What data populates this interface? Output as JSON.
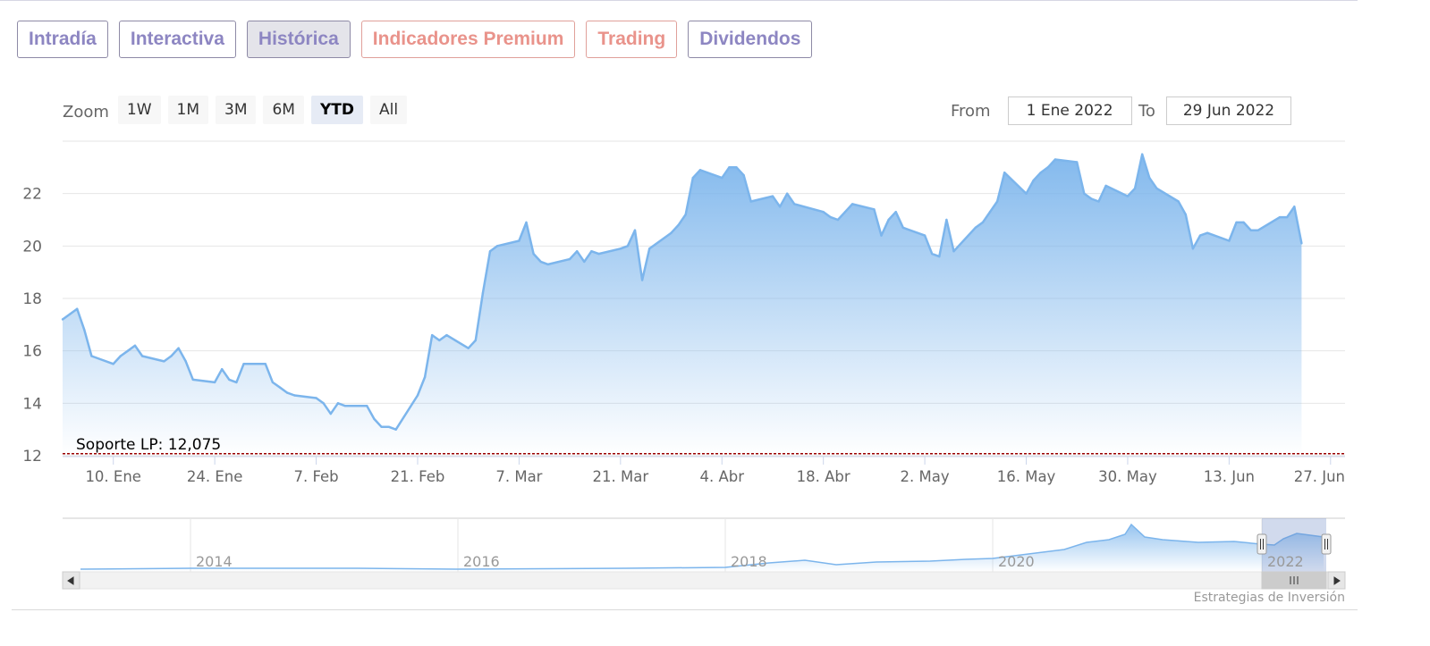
{
  "tabs": [
    {
      "label": "Intradía",
      "active": false,
      "style": "default"
    },
    {
      "label": "Interactiva",
      "active": false,
      "style": "default"
    },
    {
      "label": "Histórica",
      "active": true,
      "style": "default"
    },
    {
      "label": "Indicadores Premium",
      "active": false,
      "style": "premium"
    },
    {
      "label": "Trading",
      "active": false,
      "style": "premium"
    },
    {
      "label": "Dividendos",
      "active": false,
      "style": "default"
    }
  ],
  "zoom": {
    "label": "Zoom",
    "buttons": [
      "1W",
      "1M",
      "3M",
      "6M",
      "YTD",
      "All"
    ],
    "selected": "YTD"
  },
  "range": {
    "from_label": "From",
    "from_value": "1 Ene 2022",
    "to_label": "To",
    "to_value": "29 Jun 2022"
  },
  "credit": "Estrategias de Inversión",
  "colors": {
    "series_line": "#7cb5ec",
    "support_line": "#990000",
    "tab_text": "#8d86c2",
    "tab_premium_text": "#e9938b"
  },
  "chart_data": {
    "type": "area",
    "x_range": [
      "2022-01-03",
      "2022-06-29"
    ],
    "ylim": [
      12,
      24
    ],
    "yticks": [
      12,
      14,
      16,
      18,
      20,
      22
    ],
    "xtick_labels": [
      {
        "date": "2022-01-10",
        "label": "10. Ene"
      },
      {
        "date": "2022-01-24",
        "label": "24. Ene"
      },
      {
        "date": "2022-02-07",
        "label": "7. Feb"
      },
      {
        "date": "2022-02-21",
        "label": "21. Feb"
      },
      {
        "date": "2022-03-07",
        "label": "7. Mar"
      },
      {
        "date": "2022-03-21",
        "label": "21. Mar"
      },
      {
        "date": "2022-04-04",
        "label": "4. Abr"
      },
      {
        "date": "2022-04-18",
        "label": "18. Abr"
      },
      {
        "date": "2022-05-02",
        "label": "2. May"
      },
      {
        "date": "2022-05-16",
        "label": "16. May"
      },
      {
        "date": "2022-05-30",
        "label": "30. May"
      },
      {
        "date": "2022-06-13",
        "label": "13. Jun"
      },
      {
        "date": "2022-06-27",
        "label": "27. Jun"
      }
    ],
    "grid": true,
    "series": [
      {
        "points": [
          [
            "2022-01-03",
            17.2
          ],
          [
            "2022-01-04",
            17.4
          ],
          [
            "2022-01-05",
            17.6
          ],
          [
            "2022-01-06",
            16.8
          ],
          [
            "2022-01-07",
            15.8
          ],
          [
            "2022-01-10",
            15.5
          ],
          [
            "2022-01-11",
            15.8
          ],
          [
            "2022-01-12",
            16.0
          ],
          [
            "2022-01-13",
            16.2
          ],
          [
            "2022-01-14",
            15.8
          ],
          [
            "2022-01-17",
            15.6
          ],
          [
            "2022-01-18",
            15.8
          ],
          [
            "2022-01-19",
            16.1
          ],
          [
            "2022-01-20",
            15.6
          ],
          [
            "2022-01-21",
            14.9
          ],
          [
            "2022-01-24",
            14.8
          ],
          [
            "2022-01-25",
            15.3
          ],
          [
            "2022-01-26",
            14.9
          ],
          [
            "2022-01-27",
            14.8
          ],
          [
            "2022-01-28",
            15.5
          ],
          [
            "2022-01-31",
            15.5
          ],
          [
            "2022-02-01",
            14.8
          ],
          [
            "2022-02-02",
            14.6
          ],
          [
            "2022-02-03",
            14.4
          ],
          [
            "2022-02-04",
            14.3
          ],
          [
            "2022-02-07",
            14.2
          ],
          [
            "2022-02-08",
            14.0
          ],
          [
            "2022-02-09",
            13.6
          ],
          [
            "2022-02-10",
            14.0
          ],
          [
            "2022-02-11",
            13.9
          ],
          [
            "2022-02-14",
            13.9
          ],
          [
            "2022-02-15",
            13.4
          ],
          [
            "2022-02-16",
            13.1
          ],
          [
            "2022-02-17",
            13.1
          ],
          [
            "2022-02-18",
            13.0
          ],
          [
            "2022-02-21",
            14.3
          ],
          [
            "2022-02-22",
            15.0
          ],
          [
            "2022-02-23",
            16.6
          ],
          [
            "2022-02-24",
            16.4
          ],
          [
            "2022-02-25",
            16.6
          ],
          [
            "2022-02-28",
            16.1
          ],
          [
            "2022-03-01",
            16.4
          ],
          [
            "2022-03-02",
            18.2
          ],
          [
            "2022-03-03",
            19.8
          ],
          [
            "2022-03-04",
            20.0
          ],
          [
            "2022-03-07",
            20.2
          ],
          [
            "2022-03-08",
            20.9
          ],
          [
            "2022-03-09",
            19.7
          ],
          [
            "2022-03-10",
            19.4
          ],
          [
            "2022-03-11",
            19.3
          ],
          [
            "2022-03-14",
            19.5
          ],
          [
            "2022-03-15",
            19.8
          ],
          [
            "2022-03-16",
            19.4
          ],
          [
            "2022-03-17",
            19.8
          ],
          [
            "2022-03-18",
            19.7
          ],
          [
            "2022-03-21",
            19.9
          ],
          [
            "2022-03-22",
            20.0
          ],
          [
            "2022-03-23",
            20.6
          ],
          [
            "2022-03-24",
            18.7
          ],
          [
            "2022-03-25",
            19.9
          ],
          [
            "2022-03-28",
            20.5
          ],
          [
            "2022-03-29",
            20.8
          ],
          [
            "2022-03-30",
            21.2
          ],
          [
            "2022-03-31",
            22.6
          ],
          [
            "2022-04-01",
            22.9
          ],
          [
            "2022-04-04",
            22.6
          ],
          [
            "2022-04-05",
            23.0
          ],
          [
            "2022-04-06",
            23.0
          ],
          [
            "2022-04-07",
            22.7
          ],
          [
            "2022-04-08",
            21.7
          ],
          [
            "2022-04-11",
            21.9
          ],
          [
            "2022-04-12",
            21.5
          ],
          [
            "2022-04-13",
            22.0
          ],
          [
            "2022-04-14",
            21.6
          ],
          [
            "2022-04-18",
            21.3
          ],
          [
            "2022-04-19",
            21.1
          ],
          [
            "2022-04-20",
            21.0
          ],
          [
            "2022-04-21",
            21.3
          ],
          [
            "2022-04-22",
            21.6
          ],
          [
            "2022-04-25",
            21.4
          ],
          [
            "2022-04-26",
            20.4
          ],
          [
            "2022-04-27",
            21.0
          ],
          [
            "2022-04-28",
            21.3
          ],
          [
            "2022-04-29",
            20.7
          ],
          [
            "2022-05-02",
            20.4
          ],
          [
            "2022-05-03",
            19.7
          ],
          [
            "2022-05-04",
            19.6
          ],
          [
            "2022-05-05",
            21.0
          ],
          [
            "2022-05-06",
            19.8
          ],
          [
            "2022-05-09",
            20.7
          ],
          [
            "2022-05-10",
            20.9
          ],
          [
            "2022-05-11",
            21.3
          ],
          [
            "2022-05-12",
            21.7
          ],
          [
            "2022-05-13",
            22.8
          ],
          [
            "2022-05-16",
            22.0
          ],
          [
            "2022-05-17",
            22.5
          ],
          [
            "2022-05-18",
            22.8
          ],
          [
            "2022-05-19",
            23.0
          ],
          [
            "2022-05-20",
            23.3
          ],
          [
            "2022-05-23",
            23.2
          ],
          [
            "2022-05-24",
            22.0
          ],
          [
            "2022-05-25",
            21.8
          ],
          [
            "2022-05-26",
            21.7
          ],
          [
            "2022-05-27",
            22.3
          ],
          [
            "2022-05-30",
            21.9
          ],
          [
            "2022-05-31",
            22.2
          ],
          [
            "2022-06-01",
            23.5
          ],
          [
            "2022-06-02",
            22.6
          ],
          [
            "2022-06-03",
            22.2
          ],
          [
            "2022-06-06",
            21.7
          ],
          [
            "2022-06-07",
            21.2
          ],
          [
            "2022-06-08",
            19.9
          ],
          [
            "2022-06-09",
            20.4
          ],
          [
            "2022-06-10",
            20.5
          ],
          [
            "2022-06-13",
            20.2
          ],
          [
            "2022-06-14",
            20.9
          ],
          [
            "2022-06-15",
            20.9
          ],
          [
            "2022-06-16",
            20.6
          ],
          [
            "2022-06-17",
            20.6
          ],
          [
            "2022-06-20",
            21.1
          ],
          [
            "2022-06-21",
            21.1
          ],
          [
            "2022-06-22",
            21.5
          ],
          [
            "2022-06-23",
            20.1
          ]
        ]
      }
    ],
    "support": {
      "value": 12.075,
      "label": "Soporte LP: 12,075"
    },
    "navigator": {
      "year_labels": [
        "2014",
        "2016",
        "2018",
        "2020",
        "2022"
      ],
      "selected_range": [
        "2022-01-01",
        "2022-06-29"
      ]
    }
  }
}
